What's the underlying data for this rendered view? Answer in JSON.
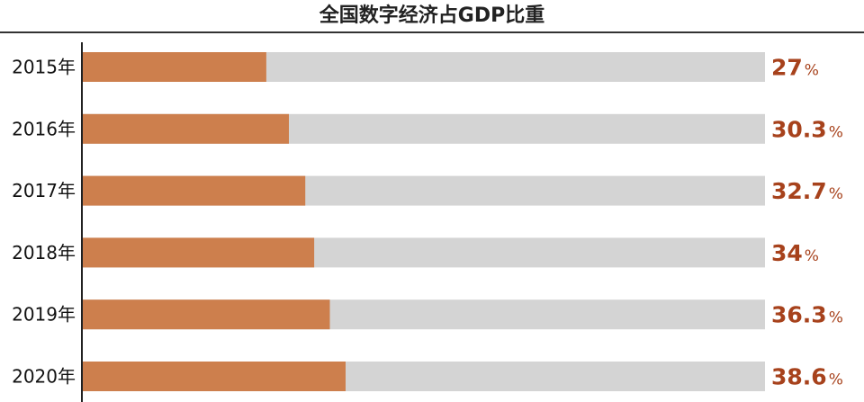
{
  "chart_data": {
    "type": "bar",
    "orientation": "horizontal",
    "title": "全国数字经济占GDP比重",
    "categories": [
      "2015年",
      "2016年",
      "2017年",
      "2018年",
      "2019年",
      "2020年"
    ],
    "values": [
      27,
      30.3,
      32.7,
      34,
      36.3,
      38.6
    ],
    "value_labels": [
      "27",
      "30.3",
      "32.7",
      "34",
      "36.3",
      "38.6"
    ],
    "value_unit": "%",
    "xlim": [
      0,
      100
    ],
    "grid": false,
    "legend": "none",
    "colors": {
      "bar": "#cd7f4d",
      "track": "#d4d4d4",
      "value_text": "#a7421c",
      "axis": "#222222",
      "title_rule": "#333333"
    }
  }
}
